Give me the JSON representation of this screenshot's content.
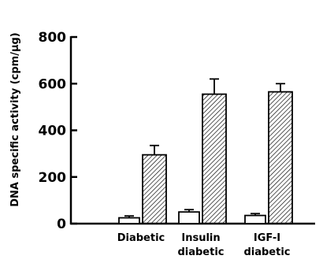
{
  "chart_data": {
    "type": "bar",
    "title": "",
    "ylabel": "DNA specific activity (cpm/µg)",
    "xlabel": "",
    "ylim": [
      0,
      800
    ],
    "yticks": [
      0,
      200,
      400,
      600,
      800
    ],
    "ytick_labels": [
      "0",
      "200",
      "400",
      "600",
      "800"
    ],
    "grid": false,
    "legend": "none",
    "categories": [
      {
        "lines": [
          "Diabetic"
        ]
      },
      {
        "lines": [
          "Insulin",
          "diabetic"
        ]
      },
      {
        "lines": [
          "IGF-I",
          "diabetic"
        ]
      }
    ],
    "series": [
      {
        "fill": "white",
        "values": [
          25,
          50,
          35
        ],
        "errors": [
          8,
          10,
          8
        ]
      },
      {
        "fill": "hatched",
        "values": [
          295,
          555,
          565
        ],
        "errors": [
          40,
          65,
          35
        ]
      }
    ]
  }
}
